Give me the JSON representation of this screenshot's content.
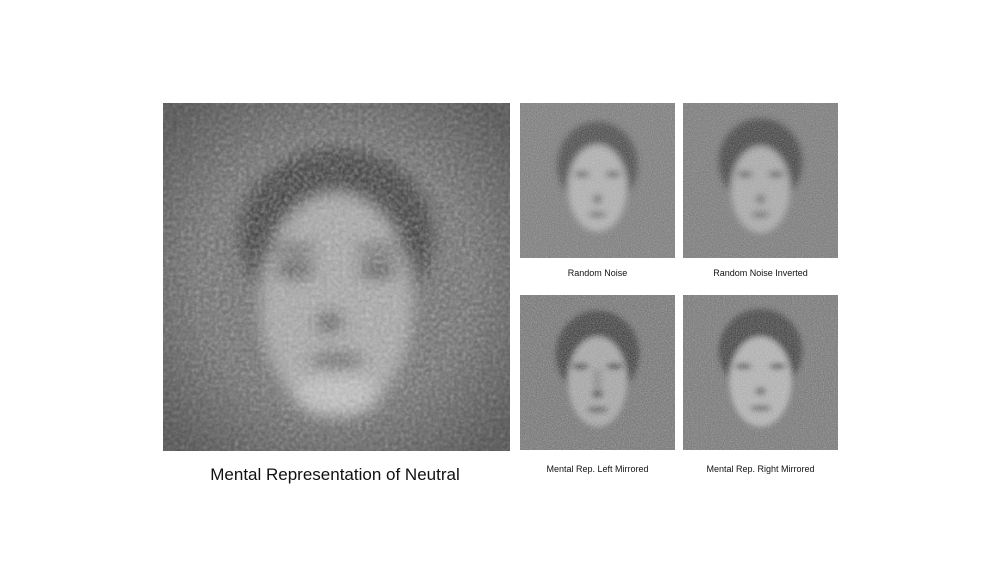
{
  "figure": {
    "main": {
      "caption": "Mental Representation of Neutral",
      "image_icon": "face-classification-image"
    },
    "panels": [
      {
        "caption": "Random Noise",
        "image_icon": "face-noise-image"
      },
      {
        "caption": "Random Noise Inverted",
        "image_icon": "face-noise-inverted-image"
      },
      {
        "caption": "Mental Rep. Left Mirrored",
        "image_icon": "face-left-mirrored-image"
      },
      {
        "caption": "Mental Rep. Right Mirrored",
        "image_icon": "face-right-mirrored-image"
      }
    ]
  }
}
